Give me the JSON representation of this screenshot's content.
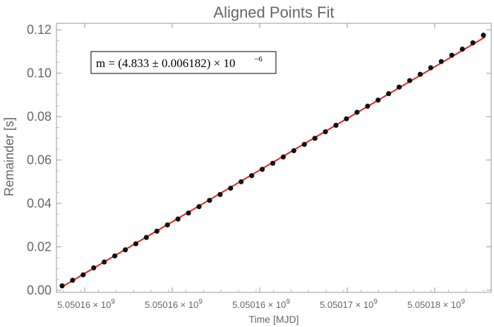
{
  "chart_data": {
    "type": "scatter",
    "title": "Aligned Points Fit",
    "xlabel": "Time [MJD]",
    "ylabel": "Remainder [s]",
    "y_ticks": [
      "0.00",
      "0.02",
      "0.04",
      "0.06",
      "0.08",
      "0.10",
      "0.12"
    ],
    "x_ticks": [
      {
        "mantissa": "5.05016",
        "exponent": "9"
      },
      {
        "mantissa": "5.05016",
        "exponent": "9"
      },
      {
        "mantissa": "5.05016",
        "exponent": "9"
      },
      {
        "mantissa": "5.05017",
        "exponent": "9"
      },
      {
        "mantissa": "5.05018",
        "exponent": "9"
      }
    ],
    "ylim": [
      -0.001,
      0.123
    ],
    "grid": false,
    "annotation": {
      "text": "m = (4.833 ± 0.006182) × 10",
      "exponent": "−6"
    },
    "fit_line": {
      "color": "#e8241a",
      "y_start": 0.0012,
      "y_end": 0.1166
    },
    "series": [
      {
        "marker_color": "#111111",
        "values": [
          0.002,
          0.0046,
          0.0071,
          0.0103,
          0.013,
          0.0158,
          0.0186,
          0.0214,
          0.0243,
          0.0272,
          0.0301,
          0.0328,
          0.0356,
          0.0385,
          0.0414,
          0.0441,
          0.047,
          0.05,
          0.0528,
          0.0557,
          0.0585,
          0.0614,
          0.0643,
          0.0672,
          0.07,
          0.073,
          0.076,
          0.079,
          0.082,
          0.0848,
          0.0876,
          0.0906,
          0.0936,
          0.0966,
          0.0995,
          0.1025,
          0.1054,
          0.1083,
          0.1111,
          0.114,
          0.1175
        ]
      }
    ]
  }
}
